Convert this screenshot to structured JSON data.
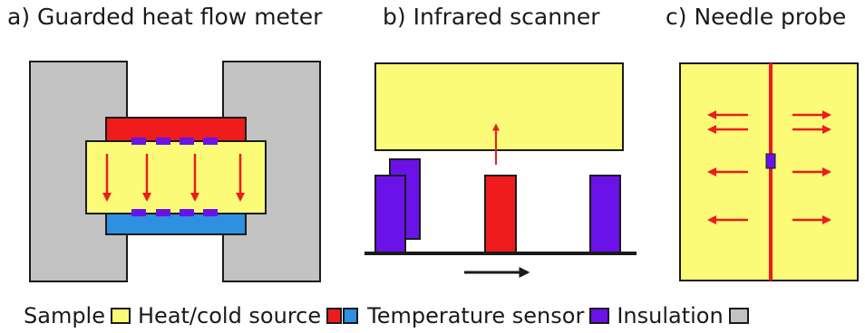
{
  "panels": {
    "a": {
      "title": "a) Guarded heat flow meter"
    },
    "b": {
      "title": "b) Infrared scanner"
    },
    "c": {
      "title": "c) Needle probe"
    }
  },
  "legend": {
    "sample": "Sample",
    "heat_cold_source": "Heat/cold source",
    "temperature_sensor": "Temperature sensor",
    "insulation": "Insulation"
  },
  "colors": {
    "sample": "#fbfb77",
    "heat_source": "#ee1c1c",
    "cold_source": "#2f8fe0",
    "temperature_sensor": "#6a12e8",
    "insulation": "#c2c2c2",
    "arrow": "#ee1c1c",
    "outline": "#1a1a1a"
  }
}
